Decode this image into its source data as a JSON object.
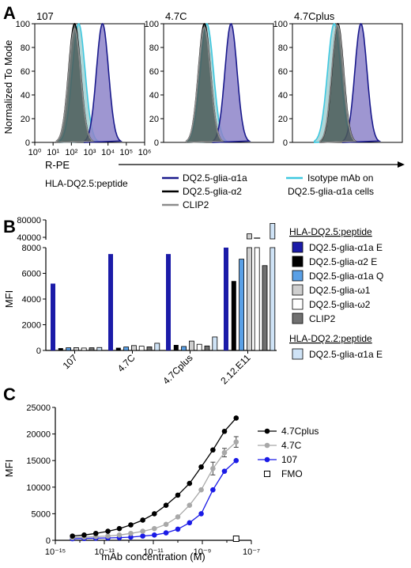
{
  "panel_labels": {
    "a": "A",
    "b": "B",
    "c": "C"
  },
  "colors": {
    "navy": "#1a1a8c",
    "navy_fill": "#8d84c9",
    "black": "#000000",
    "black_fill": "#4b5a58",
    "grey": "#8c8c8c",
    "cyan": "#3ec8e0",
    "cyan_fill": "#6fb6b8",
    "bar_blue": "#1b1ba8",
    "bar_mid": "#5aa0e6",
    "bar_light": "#cfcfcf",
    "bar_white": "#ffffff",
    "bar_dark": "#707070",
    "bar_pale": "#cfe3f6",
    "c_grey": "#a8a8a8",
    "c_blue": "#1a1ae6"
  },
  "panel_a": {
    "ylabel": "Normalized To Mode",
    "xlabel": "R-PE",
    "legend_title": "HLA-DQ2.5:peptide",
    "legend": {
      "s1": "DQ2.5-glia-α1a",
      "s2": "DQ2.5-glia-α2",
      "s3": "CLIP2",
      "s4_line1": "Isotype mAb on",
      "s4_line2": "DQ2.5-glia-α1a cells"
    },
    "y_ticks": [
      "0",
      "20",
      "40",
      "60",
      "80",
      "100"
    ],
    "x_ticks": [
      "10⁰",
      "10¹",
      "10²",
      "10³",
      "10⁴",
      "10⁵",
      "10⁶"
    ],
    "chart_data": [
      {
        "type": "area",
        "title": "107",
        "x_scale": "log",
        "xlim": [
          1,
          1000000
        ],
        "ylim": [
          0,
          100
        ],
        "series": [
          {
            "name": "DQ2.5-glia-α1a",
            "peak": 5000,
            "sigma_log10": 0.33,
            "max": 100
          },
          {
            "name": "DQ2.5-glia-α2",
            "peak": 150,
            "sigma_log10": 0.33,
            "max": 100
          },
          {
            "name": "CLIP2",
            "peak": 150,
            "sigma_log10": 0.33,
            "max": 96
          },
          {
            "name": "Isotype mAb on DQ2.5-glia-α1a cells",
            "peak": 250,
            "sigma_log10": 0.35,
            "max": 100
          }
        ]
      },
      {
        "type": "area",
        "title": "4.7C",
        "x_scale": "log",
        "xlim": [
          1,
          1000000
        ],
        "ylim": [
          0,
          100
        ],
        "series": [
          {
            "name": "DQ2.5-glia-α1a",
            "peak": 4800,
            "sigma_log10": 0.33,
            "max": 100
          },
          {
            "name": "DQ2.5-glia-α2",
            "peak": 170,
            "sigma_log10": 0.33,
            "max": 100
          },
          {
            "name": "CLIP2",
            "peak": 170,
            "sigma_log10": 0.33,
            "max": 97
          },
          {
            "name": "Isotype mAb on DQ2.5-glia-α1a cells",
            "peak": 230,
            "sigma_log10": 0.36,
            "max": 100
          }
        ]
      },
      {
        "type": "area",
        "title": "4.7Cplus",
        "x_scale": "log",
        "xlim": [
          1,
          1000000
        ],
        "ylim": [
          0,
          100
        ],
        "series": [
          {
            "name": "DQ2.5-glia-α1a",
            "peak": 5500,
            "sigma_log10": 0.33,
            "max": 100
          },
          {
            "name": "DQ2.5-glia-α2",
            "peak": 300,
            "sigma_log10": 0.32,
            "max": 100
          },
          {
            "name": "CLIP2",
            "peak": 290,
            "sigma_log10": 0.32,
            "max": 99
          },
          {
            "name": "Isotype mAb on DQ2.5-glia-α1a cells",
            "peak": 190,
            "sigma_log10": 0.36,
            "max": 100
          }
        ]
      }
    ]
  },
  "panel_b": {
    "ylabel": "MFI",
    "legend_title_1": "HLA-DQ2.5:peptide",
    "legend_title_2": "HLA-DQ2.2:peptide",
    "legend_entries": [
      "DQ2.5-glia-α1a E",
      "DQ2.5-glia-α2 E",
      "DQ2.5-glia-α1a Q",
      "DQ2.5-glia-ω1",
      "DQ2.5-glia-ω2",
      "CLIP2"
    ],
    "legend_entry_dq22": "DQ2.5-glia-α1a E",
    "y_ticks_low": [
      "0",
      "2000",
      "4000",
      "6000",
      "8000"
    ],
    "y_ticks_high": [
      "40000",
      "80000"
    ],
    "chart_data": {
      "type": "bar",
      "categories": [
        "107",
        "4.7C",
        "4.7Cplus",
        "2.12.E11"
      ],
      "y_axis": {
        "segments": [
          [
            0,
            8000
          ],
          [
            40000,
            80000
          ]
        ]
      },
      "series": [
        {
          "name": "DQ2.5-glia-α1a E",
          "values": [
            5200,
            7500,
            7500,
            8000
          ]
        },
        {
          "name": "DQ2.5-glia-α2 E",
          "values": [
            180,
            210,
            430,
            5400
          ]
        },
        {
          "name": "DQ2.5-glia-α1a Q",
          "values": [
            210,
            270,
            310,
            7100
          ]
        },
        {
          "name": "DQ2.5-glia-ω1",
          "values": [
            220,
            380,
            730,
            48000
          ]
        },
        {
          "name": "DQ2.5-glia-ω2",
          "values": [
            190,
            330,
            480,
            38000
          ]
        },
        {
          "name": "CLIP2",
          "values": [
            210,
            280,
            350,
            6600
          ]
        },
        {
          "name": "DQ2.5-glia-α1a E (DQ2.2)",
          "values": [
            230,
            560,
            1050,
            72000
          ]
        }
      ]
    }
  },
  "panel_c": {
    "xlabel": "mAb concentration (M)",
    "ylabel": "MFI",
    "y_ticks": [
      "0",
      "5000",
      "10000",
      "15000",
      "20000",
      "25000"
    ],
    "x_ticks": [
      "10⁻¹⁵",
      "10⁻¹³",
      "10⁻¹¹",
      "10⁻⁹",
      "10⁻⁷"
    ],
    "legend": [
      "4.7Cplus",
      "4.7C",
      "107",
      "FMO"
    ],
    "chart_data": {
      "type": "scatter",
      "x_scale": "log",
      "xlim": [
        1e-15,
        1e-07
      ],
      "ylim": [
        0,
        25000
      ],
      "x": [
        5e-15,
        1.5e-14,
        4.5e-14,
        1.4e-13,
        4.1e-13,
        1.2e-12,
        3.7e-12,
        1.1e-11,
        3.3e-11,
        1e-10,
        3e-10,
        9e-10,
        2.7e-09,
        8e-09,
        2.4e-08
      ],
      "series": [
        {
          "name": "4.7Cplus",
          "values": [
            800,
            1000,
            1300,
            1700,
            2200,
            2900,
            3800,
            5000,
            6600,
            8500,
            10700,
            13800,
            17000,
            20500,
            23000
          ]
        },
        {
          "name": "4.7C",
          "values": [
            500,
            600,
            700,
            800,
            1000,
            1300,
            1700,
            2200,
            3000,
            4400,
            6600,
            9500,
            13500,
            16500,
            18500
          ]
        },
        {
          "name": "107",
          "values": [
            300,
            350,
            400,
            450,
            500,
            600,
            800,
            1000,
            1400,
            2100,
            3300,
            5000,
            9500,
            13000,
            15000
          ]
        },
        {
          "name": "FMO",
          "x": [
            2.4e-08
          ],
          "values": [
            300
          ]
        }
      ],
      "error_bars": {
        "4.7C": [
          0,
          0,
          0,
          0,
          0,
          0,
          0,
          0,
          0,
          0,
          0,
          0,
          1200,
          800,
          1000
        ]
      }
    }
  }
}
